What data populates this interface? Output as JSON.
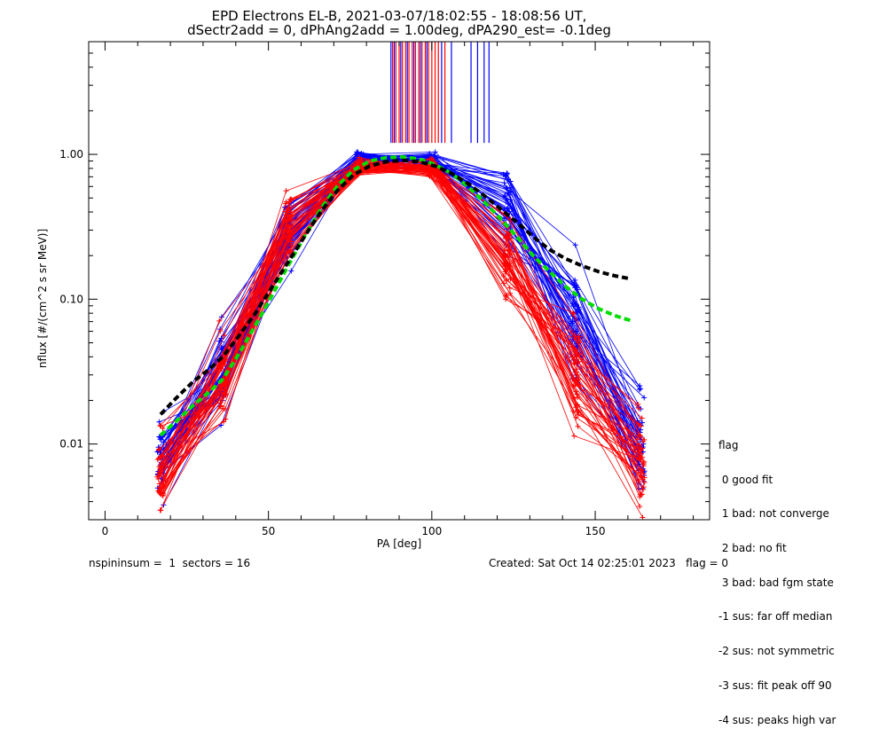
{
  "header": {
    "title_line1": "EPD Electrons EL-B, 2021-03-07/18:02:55 - 18:08:56 UT,",
    "title_line2": "dSectr2add = 0, dPhAng2add = 1.00deg, dPA290_est=  -0.1deg"
  },
  "footer": {
    "left": "nspininsum =  1  sectors = 16",
    "right": "Created: Sat Oct 14 02:25:01 2023   flag = 0"
  },
  "legend": {
    "title": "flag",
    "items": [
      " 0 good fit",
      " 1 bad: not converge",
      " 2 bad: no fit",
      " 3 bad: bad fgm state",
      "-1 sus: far off median",
      "-2 sus: not symmetric",
      "-3 sus: fit peak off 90",
      "-4 sus: peaks high var"
    ]
  },
  "colors": {
    "red": "#ff0000",
    "blue": "#0000ff",
    "green": "#00dd00",
    "black": "#000000"
  },
  "chart_data": {
    "type": "line",
    "xlabel": "PA [deg]",
    "ylabel": "nflux [#/(cm^2 s sr MeV)]",
    "x_scale": "linear",
    "y_scale": "log",
    "xlim": [
      -5,
      185
    ],
    "ylim": [
      0.003,
      6.0
    ],
    "x_ticks": [
      0,
      50,
      100,
      150
    ],
    "x_tick_labels": [
      "0",
      "50",
      "100",
      "150"
    ],
    "y_ticks": [
      0.01,
      0.1,
      1.0
    ],
    "y_tick_labels": [
      "0.01",
      "0.10",
      "1.00"
    ],
    "x_sample_points": [
      17,
      36,
      56,
      78,
      100,
      123,
      144,
      164
    ],
    "series": [
      {
        "color": "red",
        "representative": [
          0.006,
          0.03,
          0.3,
          0.8,
          0.8,
          0.2,
          0.03,
          0.008
        ]
      },
      {
        "color": "blue",
        "representative": [
          0.008,
          0.03,
          0.3,
          0.95,
          0.9,
          0.4,
          0.08,
          0.01
        ]
      },
      {
        "color": "green",
        "style": "dashed",
        "x": [
          17,
          22,
          27,
          32,
          36,
          41,
          46,
          51,
          56,
          61,
          66,
          71,
          76,
          81,
          86,
          91,
          96,
          101,
          106,
          111,
          116,
          121,
          126,
          131,
          136,
          141,
          146,
          151,
          156,
          161
        ],
        "values": [
          0.0115,
          0.0145,
          0.0185,
          0.023,
          0.028,
          0.042,
          0.066,
          0.105,
          0.17,
          0.27,
          0.42,
          0.6,
          0.78,
          0.9,
          0.95,
          0.96,
          0.93,
          0.85,
          0.74,
          0.6,
          0.47,
          0.36,
          0.27,
          0.2,
          0.155,
          0.122,
          0.1,
          0.086,
          0.077,
          0.071
        ]
      },
      {
        "color": "black",
        "style": "dashed",
        "x": [
          17,
          22,
          27,
          32,
          36,
          41,
          46,
          51,
          56,
          61,
          66,
          71,
          76,
          81,
          86,
          91,
          96,
          101,
          106,
          111,
          116,
          121,
          126,
          131,
          136,
          141,
          146,
          151,
          156,
          161
        ],
        "values": [
          0.016,
          0.021,
          0.027,
          0.033,
          0.04,
          0.056,
          0.08,
          0.12,
          0.18,
          0.27,
          0.4,
          0.56,
          0.72,
          0.83,
          0.89,
          0.91,
          0.89,
          0.83,
          0.74,
          0.63,
          0.52,
          0.42,
          0.34,
          0.27,
          0.22,
          0.19,
          0.17,
          0.155,
          0.145,
          0.138
        ]
      }
    ],
    "peak_markers": {
      "ymin": 1.2,
      "red_x": [
        88,
        89,
        90,
        91,
        92,
        93,
        94,
        95,
        96,
        97,
        98,
        99,
        100,
        101,
        102,
        104
      ],
      "blue_x": [
        87.5,
        88.5,
        90.5,
        92.5,
        94.5,
        96.5,
        98.5,
        103,
        106,
        112,
        114,
        116,
        117.5
      ]
    }
  }
}
